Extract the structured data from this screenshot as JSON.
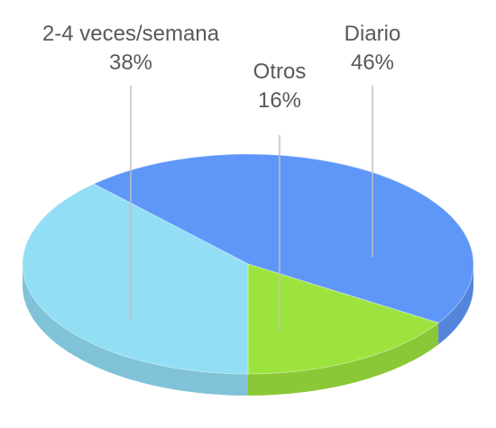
{
  "chart_data": {
    "type": "pie",
    "categories": [
      "Diario",
      "Otros",
      "2-4 veces/semana"
    ],
    "values": [
      46,
      16,
      38
    ],
    "value_labels": [
      "46%",
      "16%",
      "38%"
    ],
    "colors": [
      "#5f97f8",
      "#9de33e",
      "#91def5"
    ]
  }
}
